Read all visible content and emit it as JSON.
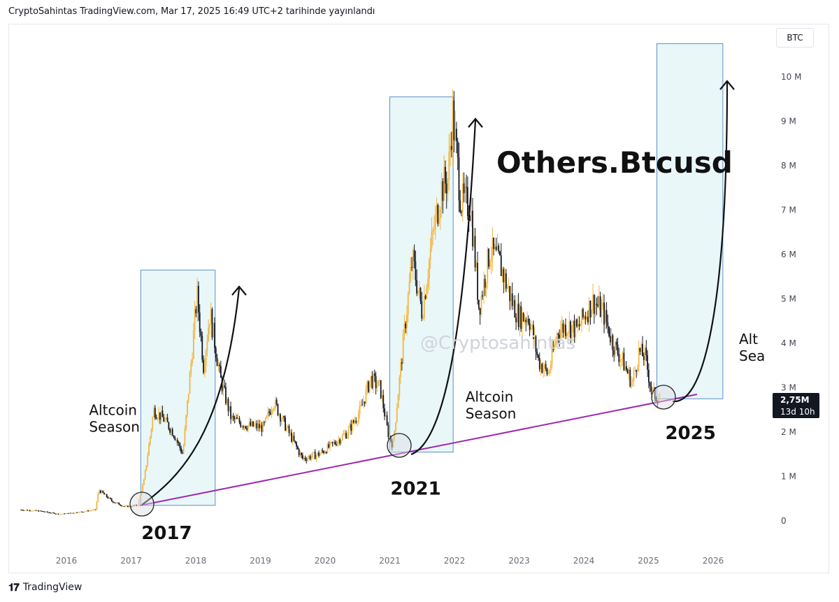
{
  "header": {
    "text": "CryptoSahintas TradingView.com, Mar 17, 2025 16:49 UTC+2 tarihinde yayınlandı"
  },
  "footer": {
    "logo": "𝟏𝟕",
    "brand": "TradingView"
  },
  "currency": "BTC",
  "price_label": {
    "value": "2,75M",
    "countdown": "13d 10h"
  },
  "colors": {
    "candle_up": "#f2b640",
    "candle_down": "#131722",
    "trendline": "#9c27b0",
    "box_fill": "#e9f7f9",
    "box_stroke": "#5b8fc9"
  },
  "chart_data": {
    "type": "candlestick",
    "title": "Others.Btcusd",
    "watermark": "@Cryptosahintas",
    "xlabel": "",
    "ylabel": "",
    "x_ticks": [
      "2016",
      "2017",
      "2018",
      "2019",
      "2020",
      "2021",
      "2022",
      "2023",
      "2024",
      "2025",
      "2026"
    ],
    "y_ticks": [
      "0",
      "1 M",
      "2 M",
      "3 M",
      "4 M",
      "5 M",
      "6 M",
      "7 M",
      "8 M",
      "9 M",
      "10 M"
    ],
    "ylim": [
      -0.2,
      10.9
    ],
    "series": [
      {
        "values": [
          {
            "t": 2015.3,
            "v": 0.25
          },
          {
            "t": 2015.6,
            "v": 0.22
          },
          {
            "t": 2015.9,
            "v": 0.15
          },
          {
            "t": 2016.2,
            "v": 0.2
          },
          {
            "t": 2016.45,
            "v": 0.25
          },
          {
            "t": 2016.5,
            "v": 0.7
          },
          {
            "t": 2016.7,
            "v": 0.45
          },
          {
            "t": 2016.9,
            "v": 0.32
          },
          {
            "t": 2017.1,
            "v": 0.35
          },
          {
            "t": 2017.2,
            "v": 0.9
          },
          {
            "t": 2017.35,
            "v": 2.5
          },
          {
            "t": 2017.5,
            "v": 2.3
          },
          {
            "t": 2017.65,
            "v": 2.0
          },
          {
            "t": 2017.8,
            "v": 1.5
          },
          {
            "t": 2017.93,
            "v": 3.6
          },
          {
            "t": 2018.02,
            "v": 5.1
          },
          {
            "t": 2018.12,
            "v": 3.5
          },
          {
            "t": 2018.22,
            "v": 4.7
          },
          {
            "t": 2018.38,
            "v": 3.2
          },
          {
            "t": 2018.55,
            "v": 2.3
          },
          {
            "t": 2018.8,
            "v": 2.15
          },
          {
            "t": 2019.05,
            "v": 2.1
          },
          {
            "t": 2019.2,
            "v": 2.7
          },
          {
            "t": 2019.4,
            "v": 2.1
          },
          {
            "t": 2019.65,
            "v": 1.4
          },
          {
            "t": 2019.9,
            "v": 1.5
          },
          {
            "t": 2020.1,
            "v": 1.7
          },
          {
            "t": 2020.35,
            "v": 2.0
          },
          {
            "t": 2020.55,
            "v": 2.5
          },
          {
            "t": 2020.7,
            "v": 3.2
          },
          {
            "t": 2020.85,
            "v": 3.0
          },
          {
            "t": 2020.97,
            "v": 2.0
          },
          {
            "t": 2021.05,
            "v": 1.7
          },
          {
            "t": 2021.13,
            "v": 2.9
          },
          {
            "t": 2021.25,
            "v": 4.6
          },
          {
            "t": 2021.35,
            "v": 5.9
          },
          {
            "t": 2021.5,
            "v": 4.7
          },
          {
            "t": 2021.65,
            "v": 6.3
          },
          {
            "t": 2021.8,
            "v": 7.5
          },
          {
            "t": 2021.9,
            "v": 7.7
          },
          {
            "t": 2021.97,
            "v": 9.2
          },
          {
            "t": 2022.1,
            "v": 7.2
          },
          {
            "t": 2022.25,
            "v": 7.1
          },
          {
            "t": 2022.38,
            "v": 4.8
          },
          {
            "t": 2022.55,
            "v": 6.1
          },
          {
            "t": 2022.7,
            "v": 5.8
          },
          {
            "t": 2022.9,
            "v": 4.9
          },
          {
            "t": 2023.0,
            "v": 4.6
          },
          {
            "t": 2023.15,
            "v": 4.6
          },
          {
            "t": 2023.3,
            "v": 3.6
          },
          {
            "t": 2023.45,
            "v": 3.3
          },
          {
            "t": 2023.6,
            "v": 4.3
          },
          {
            "t": 2023.75,
            "v": 4.4
          },
          {
            "t": 2023.9,
            "v": 4.3
          },
          {
            "t": 2024.0,
            "v": 4.6
          },
          {
            "t": 2024.15,
            "v": 4.95
          },
          {
            "t": 2024.3,
            "v": 4.7
          },
          {
            "t": 2024.45,
            "v": 4.0
          },
          {
            "t": 2024.6,
            "v": 3.6
          },
          {
            "t": 2024.75,
            "v": 3.1
          },
          {
            "t": 2024.85,
            "v": 3.8
          },
          {
            "t": 2024.95,
            "v": 3.7
          },
          {
            "t": 2025.05,
            "v": 2.9
          },
          {
            "t": 2025.12,
            "v": 2.8
          },
          {
            "t": 2025.18,
            "v": 2.75
          }
        ]
      }
    ],
    "annotations": [
      {
        "text": "Altcoin",
        "line2": "Season",
        "t": 2016.35,
        "v": 2.1
      },
      {
        "text": "Altcoin",
        "line2": "Season",
        "t": 2022.17,
        "v": 2.4
      },
      {
        "text": "Alt",
        "line2": "Sea",
        "t": 2026.4,
        "v": 3.7
      }
    ],
    "years": [
      {
        "text": "2017",
        "t": 2017.55,
        "v": -0.25
      },
      {
        "text": "2021",
        "t": 2021.4,
        "v": 0.75
      },
      {
        "text": "2025",
        "t": 2025.65,
        "v": 2.0
      }
    ],
    "boxes": [
      {
        "t0": 2017.15,
        "t1": 2018.3,
        "v0": 0.35,
        "v1": 5.65
      },
      {
        "t0": 2021.0,
        "t1": 2021.98,
        "v0": 1.55,
        "v1": 9.55
      },
      {
        "t0": 2025.13,
        "t1": 2026.15,
        "v0": 2.75,
        "v1": 10.75
      }
    ]
  }
}
